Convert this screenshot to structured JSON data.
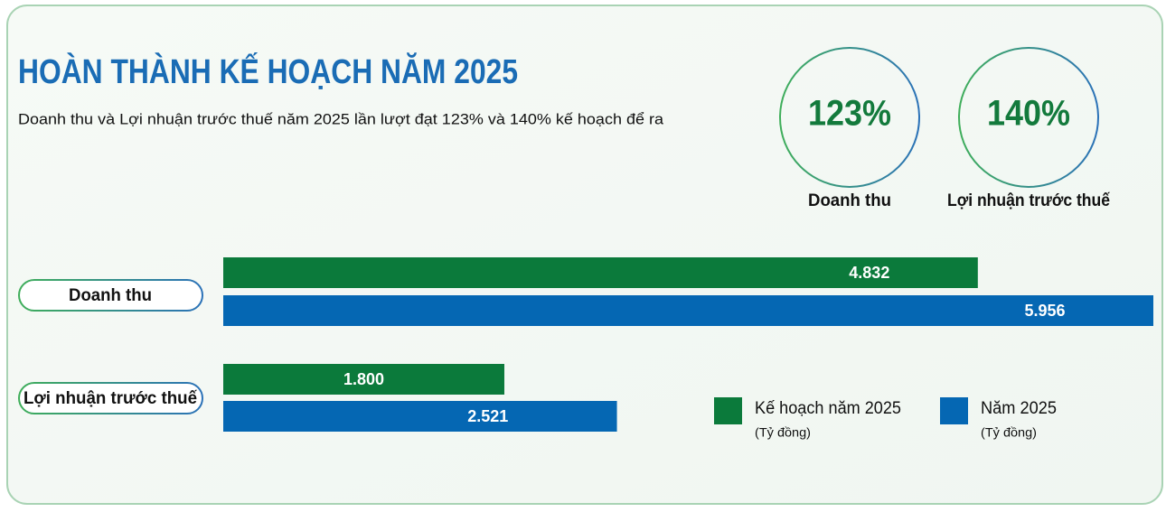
{
  "chart_data": {
    "type": "bar",
    "orientation": "horizontal",
    "title": "HOÀN THÀNH KẾ HOẠCH NĂM 2025",
    "subtitle": "Doanh thu và Lợi nhuận trước thuế năm 2025 lần lượt đạt 123% và 140% kế hoạch để ra",
    "kpis": [
      {
        "label": "123%",
        "name": "Doanh thu"
      },
      {
        "label": "140%",
        "name": "Lợi nhuận trước thuế"
      }
    ],
    "categories": [
      "Doanh thu",
      "Lợi nhuận trước thuế"
    ],
    "unit": "(Tỷ đồng)",
    "series": [
      {
        "name": "Kế hoạch năm 2025",
        "color": "#0b7a3b",
        "values": [
          4832,
          1800
        ],
        "value_labels": [
          "4.832",
          "1.800"
        ]
      },
      {
        "name": "Năm 2025",
        "color": "#0567b3",
        "values": [
          5956,
          2521
        ],
        "value_labels": [
          "5.956",
          "2.521"
        ]
      }
    ]
  }
}
